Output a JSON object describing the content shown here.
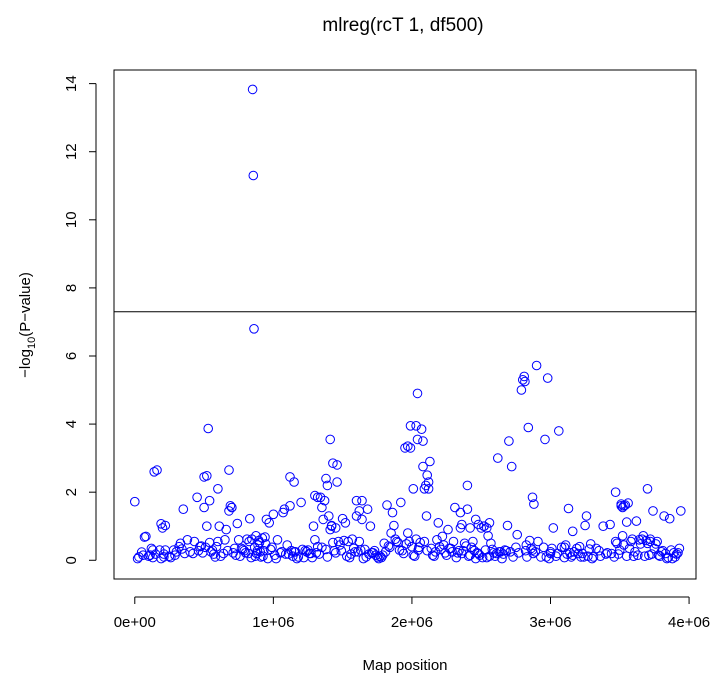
{
  "chart_data": {
    "type": "scatter",
    "title": "mlreg(rcT 1, df500)",
    "xlabel": "Map position",
    "ylabel": "−log10(P−value)",
    "xlim": [
      -150000,
      4050000
    ],
    "ylim": [
      -0.55,
      14.4
    ],
    "x_ticks": [
      0,
      1000000,
      2000000,
      3000000,
      4000000
    ],
    "x_tick_labels": [
      "0e+00",
      "1e+06",
      "2e+06",
      "3e+06",
      "4e+06"
    ],
    "y_ticks": [
      0,
      2,
      4,
      6,
      8,
      10,
      12,
      14
    ],
    "y_tick_labels": [
      "0",
      "2",
      "4",
      "6",
      "8",
      "10",
      "12",
      "14"
    ],
    "threshold": 7.3,
    "grid": false,
    "point_color": "#0000FF",
    "series": [
      {
        "x": [
          0,
          20000,
          50000,
          70000,
          80000,
          100000,
          110000,
          130000,
          150000,
          160000,
          180000,
          190000,
          200000,
          220000,
          250000,
          280000,
          300000,
          320000,
          340000,
          350000,
          380000,
          420000,
          450000,
          470000,
          480000,
          500000,
          510000,
          520000,
          530000,
          540000,
          560000,
          580000,
          600000,
          620000,
          650000,
          660000,
          680000,
          690000,
          700000,
          720000,
          740000,
          760000,
          780000,
          800000,
          810000,
          820000,
          830000,
          840000,
          850000,
          855000,
          860000,
          870000,
          880000,
          890000,
          900000,
          910000,
          920000,
          930000,
          940000,
          950000,
          970000,
          990000,
          1000000,
          1020000,
          1050000,
          1070000,
          1090000,
          1100000,
          1120000,
          1140000,
          1150000,
          1170000,
          1200000,
          1220000,
          1230000,
          1250000,
          1270000,
          1290000,
          1300000,
          1320000,
          1340000,
          1360000,
          1370000,
          1380000,
          1400000,
          1410000,
          1420000,
          1440000,
          1460000,
          1480000,
          1500000,
          1520000,
          1540000,
          1560000,
          1580000,
          1590000,
          1600000,
          1620000,
          1640000,
          1660000,
          1680000,
          1700000,
          1720000,
          1740000,
          1750000,
          1760000,
          1770000,
          1780000,
          1800000,
          1820000,
          1840000,
          1860000,
          1880000,
          1900000,
          1920000,
          1930000,
          1950000,
          1970000,
          1990000,
          2000000,
          2020000,
          2040000,
          2050000,
          2070000,
          2080000,
          2090000,
          2100000,
          2120000,
          2130000,
          2150000,
          2170000,
          2190000,
          2200000,
          2220000,
          2240000,
          2260000,
          2280000,
          2300000,
          2320000,
          2340000,
          2350000,
          2360000,
          2380000,
          2400000,
          2420000,
          2440000,
          2460000,
          2480000,
          2500000,
          2520000,
          2540000,
          2560000,
          2580000,
          2600000,
          2620000,
          2640000,
          2660000,
          2680000,
          2700000,
          2720000,
          2760000,
          2790000,
          2800000,
          2810000,
          2820000,
          2840000,
          2860000,
          2880000,
          2900000,
          2930000,
          2960000,
          2980000,
          3000000,
          3020000,
          3040000,
          3060000,
          3100000,
          3120000,
          3140000,
          3160000,
          3200000,
          3220000,
          3240000,
          3260000,
          3280000,
          3300000,
          3330000,
          3360000,
          3400000,
          3430000,
          3460000,
          3480000,
          3500000,
          3510000,
          3520000,
          3540000,
          3560000,
          3580000,
          3600000,
          3620000,
          3640000,
          3660000,
          3680000,
          3700000,
          3720000,
          3740000,
          3760000,
          3780000,
          3800000,
          3820000,
          3840000,
          3860000,
          3880000,
          3900000,
          3920000,
          3940000,
          30000,
          60000,
          120000,
          140000,
          210000,
          260000,
          290000,
          330000,
          360000,
          400000,
          430000,
          460000,
          490000,
          550000,
          570000,
          590000,
          610000,
          640000,
          670000,
          710000,
          730000,
          750000,
          770000,
          790000,
          825000,
          845000,
          865000,
          875000,
          885000,
          895000,
          905000,
          925000,
          945000,
          960000,
          980000,
          1010000,
          1030000,
          1060000,
          1080000,
          1110000,
          1130000,
          1160000,
          1180000,
          1210000,
          1240000,
          1260000,
          1280000,
          1310000,
          1330000,
          1350000,
          1390000,
          1430000,
          1450000,
          1470000,
          1490000,
          1510000,
          1530000,
          1550000,
          1570000,
          1610000,
          1630000,
          1650000,
          1670000,
          1690000,
          1710000,
          1730000,
          1790000,
          1810000,
          1830000,
          1850000,
          1870000,
          1890000,
          1910000,
          1940000,
          1960000,
          1980000,
          2010000,
          2030000,
          2060000,
          2110000,
          2140000,
          2160000,
          2180000,
          2210000,
          2230000,
          2250000,
          2270000,
          2290000,
          2310000,
          2330000,
          2370000,
          2390000,
          2410000,
          2430000,
          2450000,
          2470000,
          2490000,
          2510000,
          2530000,
          2550000,
          2570000,
          2590000,
          2610000,
          2630000,
          2650000,
          2670000,
          2690000,
          2710000,
          2730000,
          2750000,
          2770000,
          2830000,
          2850000,
          2870000,
          2890000,
          2910000,
          2950000,
          2970000,
          2990000,
          3010000,
          3050000,
          3080000,
          3110000,
          3130000,
          3150000,
          3170000,
          3190000,
          3210000,
          3230000,
          3250000,
          3270000,
          3290000,
          3310000,
          3350000,
          3380000,
          3410000,
          3440000,
          3470000,
          3490000,
          3530000,
          3550000,
          3570000,
          3590000,
          3610000,
          3630000,
          3650000,
          3670000,
          3690000,
          3710000,
          3730000,
          3750000,
          3770000,
          3790000,
          3810000,
          3830000,
          3850000,
          3870000,
          3890000,
          3910000,
          3930000,
          2040000,
          2045000,
          2870000,
          2875000,
          2815000,
          2825000,
          1380000,
          1390000,
          1350000,
          1450000,
          3470000,
          3000000,
          2350000,
          2360000,
          1970000,
          1990000,
          2010000,
          2080000,
          2090000,
          2030000,
          2105000,
          2110000,
          2120000,
          1410000,
          1420000,
          1430000,
          3100000,
          3160000,
          3510000,
          3520000,
          3530000,
          3550000,
          3700000,
          3720000,
          110000,
          130000,
          190000,
          210000,
          220000,
          500000,
          520000,
          540000,
          600000,
          680000,
          700000,
          1120000,
          1150000,
          1300000,
          1320000,
          1460000,
          1600000,
          1620000,
          1640000,
          2400000,
          2420000,
          2460000,
          2480000,
          2520000,
          2540000,
          2560000
        ],
        "y": [
          1.72,
          0.05,
          0.24,
          0.68,
          0.7,
          0.12,
          0.15,
          0.3,
          0.18,
          2.65,
          0.3,
          1.07,
          0.95,
          1.02,
          0.12,
          0.3,
          0.25,
          0.4,
          0.33,
          1.5,
          0.6,
          0.2,
          1.85,
          0.4,
          0.42,
          2.45,
          0.38,
          2.48,
          3.87,
          0.52,
          0.3,
          0.1,
          0.55,
          0.12,
          0.6,
          0.9,
          2.65,
          1.6,
          1.55,
          0.35,
          1.08,
          0.12,
          0.32,
          0.22,
          0.62,
          0.2,
          1.22,
          0.08,
          13.83,
          11.3,
          6.8,
          0.12,
          0.2,
          0.45,
          0.52,
          0.1,
          0.65,
          0.28,
          0.68,
          1.2,
          1.1,
          0.38,
          1.35,
          0.05,
          0.22,
          1.4,
          0.18,
          0.45,
          1.6,
          0.12,
          0.25,
          0.05,
          1.7,
          0.08,
          0.28,
          0.3,
          0.2,
          1.0,
          0.6,
          0.4,
          1.85,
          1.2,
          1.75,
          0.32,
          1.3,
          3.55,
          1.02,
          0.28,
          2.3,
          0.45,
          1.22,
          1.1,
          0.55,
          0.18,
          0.35,
          0.25,
          1.75,
          0.55,
          1.2,
          0.32,
          1.5,
          1.0,
          0.22,
          0.15,
          0.1,
          0.05,
          0.12,
          0.08,
          0.5,
          1.62,
          0.38,
          1.4,
          0.62,
          0.52,
          1.7,
          0.28,
          3.3,
          0.8,
          3.95,
          0.4,
          0.12,
          4.9,
          0.38,
          3.85,
          2.75,
          0.55,
          2.2,
          2.1,
          2.9,
          0.15,
          0.25,
          1.1,
          0.4,
          0.7,
          0.22,
          0.9,
          0.35,
          0.55,
          0.08,
          0.28,
          0.95,
          0.2,
          0.5,
          2.2,
          0.15,
          0.55,
          0.05,
          0.2,
          0.95,
          1.0,
          0.08,
          0.12,
          0.32,
          0.12,
          3.0,
          0.25,
          0.18,
          0.28,
          3.5,
          2.75,
          0.75,
          5.0,
          5.3,
          5.4,
          0.28,
          3.9,
          0.35,
          1.65,
          5.72,
          0.1,
          3.55,
          5.35,
          0.2,
          0.95,
          0.12,
          3.8,
          0.08,
          0.18,
          0.22,
          0.85,
          0.2,
          0.1,
          0.1,
          1.3,
          0.33,
          0.05,
          0.35,
          0.12,
          0.18,
          1.05,
          0.1,
          0.5,
          0.3,
          1.65,
          0.72,
          1.62,
          1.68,
          0.55,
          0.12,
          1.15,
          0.6,
          0.62,
          0.12,
          0.5,
          0.55,
          1.45,
          0.48,
          0.15,
          0.25,
          1.3,
          0.05,
          1.22,
          0.05,
          0.1,
          0.22,
          1.45,
          0.1,
          0.15,
          0.35,
          2.6,
          0.18,
          0.08,
          0.15,
          0.5,
          0.2,
          0.25,
          0.55,
          0.28,
          0.22,
          0.25,
          0.18,
          0.4,
          1.0,
          0.2,
          0.28,
          0.22,
          0.15,
          0.6,
          0.35,
          0.28,
          0.55,
          0.62,
          0.38,
          0.72,
          0.28,
          0.58,
          0.25,
          0.12,
          0.48,
          0.05,
          0.32,
          0.15,
          0.6,
          0.25,
          1.5,
          0.18,
          0.28,
          0.25,
          0.1,
          0.32,
          0.25,
          0.2,
          0.08,
          0.22,
          0.18,
          0.38,
          0.1,
          0.52,
          0.22,
          0.55,
          0.28,
          0.58,
          0.12,
          0.08,
          0.62,
          0.25,
          0.3,
          0.05,
          0.1,
          0.18,
          0.22,
          0.28,
          0.15,
          0.25,
          0.42,
          0.8,
          1.02,
          0.55,
          0.3,
          0.2,
          0.48,
          0.55,
          0.15,
          0.62,
          0.52,
          0.28,
          0.35,
          0.12,
          0.6,
          0.32,
          0.45,
          0.15,
          0.35,
          0.25,
          1.55,
          0.22,
          0.28,
          0.42,
          0.12,
          0.38,
          0.28,
          0.22,
          0.15,
          0.08,
          0.3,
          0.72,
          0.5,
          0.22,
          0.2,
          0.25,
          0.05,
          0.3,
          1.02,
          0.25,
          0.1,
          0.38,
          0.22,
          0.1,
          0.58,
          0.3,
          0.25,
          0.55,
          0.38,
          0.1,
          0.05,
          0.35,
          0.2,
          0.38,
          0.45,
          1.52,
          0.1,
          0.25,
          0.35,
          0.4,
          0.2,
          1.02,
          0.12,
          0.48,
          0.1,
          0.28,
          1.0,
          0.22,
          0.2,
          0.55,
          0.18,
          0.45,
          0.12,
          0.35,
          0.62,
          0.25,
          0.15,
          0.48,
          0.72,
          0.58,
          0.15,
          0.18,
          0.35,
          0.55,
          0.12,
          0.28,
          0.2,
          0.08,
          0.3,
          0.22,
          0.18,
          0.35,
          3.55,
          0.3,
          1.85,
          0.2,
          5.25,
          0.45,
          2.4,
          2.2,
          1.55,
          0.95,
          2.0,
          0.25,
          1.4,
          1.05,
          3.35,
          3.3,
          2.1,
          3.5,
          2.1,
          3.95,
          1.3,
          2.5,
          2.3,
          0.9,
          1.0,
          2.85,
          0.38,
          0.15,
          1.6,
          1.55,
          1.6,
          1.12,
          2.1,
          0.62,
          0.15,
          0.08,
          0.05,
          0.1,
          0.3,
          1.55,
          1.0,
          1.75,
          2.1,
          1.45,
          1.55,
          2.45,
          2.3,
          1.9,
          1.85,
          2.8,
          1.3,
          1.45,
          1.75,
          1.5,
          0.95,
          1.2,
          1.05,
          1.0,
          0.95,
          1.1
        ]
      }
    ]
  }
}
